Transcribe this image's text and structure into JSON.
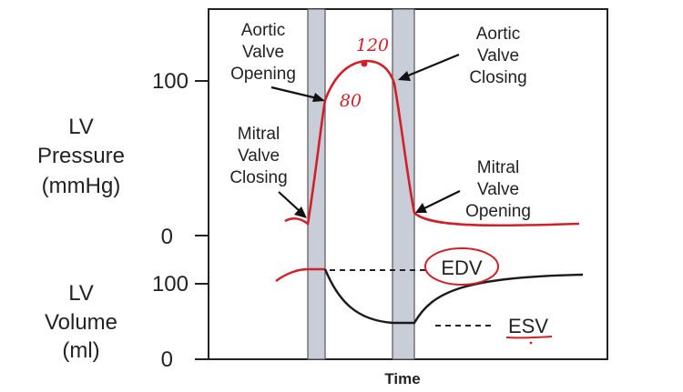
{
  "y_axis": {
    "pressure_label": [
      "LV",
      "Pressure",
      "(mmHg)"
    ],
    "volume_label": [
      "LV",
      "Volume",
      "(ml)"
    ],
    "pressure_ticks": [
      "100",
      "0"
    ],
    "volume_ticks": [
      "100",
      "0"
    ]
  },
  "x_axis": {
    "label": "Time"
  },
  "annotations": {
    "aortic_opening": [
      "Aortic",
      "Valve",
      "Opening"
    ],
    "aortic_closing": [
      "Aortic",
      "Valve",
      "Closing"
    ],
    "mitral_closing": [
      "Mitral",
      "Valve",
      "Closing"
    ],
    "mitral_opening": [
      "Mitral",
      "Valve",
      "Opening"
    ],
    "edv": "EDV",
    "esv": "ESV"
  },
  "handwritten": {
    "peak": "120",
    "opening_pressure": "80"
  },
  "colors": {
    "pressure_curve": "#d0202a",
    "volume_curve": "#1a1a1a",
    "isovolumetric_band": "#c8cdd8",
    "annotation_ink": "#d0202a",
    "frame": "#222222"
  }
}
